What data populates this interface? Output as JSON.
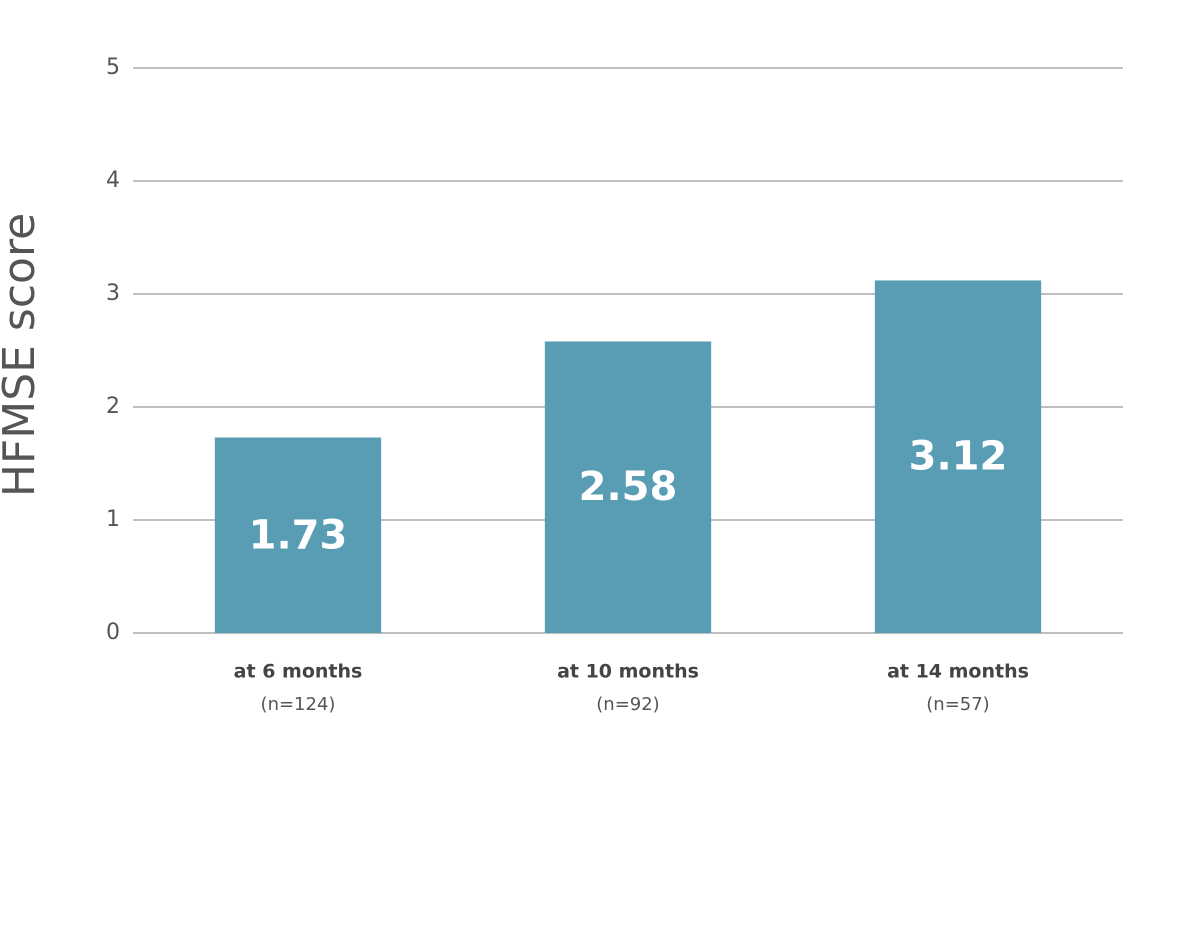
{
  "chart_data": {
    "type": "bar",
    "y_label": "HFMSE score",
    "categories": [
      "at 6 months",
      "at 10 months",
      "at 14 months"
    ],
    "category_notes": [
      "(n=124)",
      "(n=92)",
      "(n=57)"
    ],
    "values": [
      1.73,
      2.58,
      3.12
    ],
    "color": "#589db4",
    "ylim": [
      0,
      5
    ],
    "yticks": [
      0,
      1,
      2,
      3,
      4,
      5
    ],
    "grid": true
  }
}
